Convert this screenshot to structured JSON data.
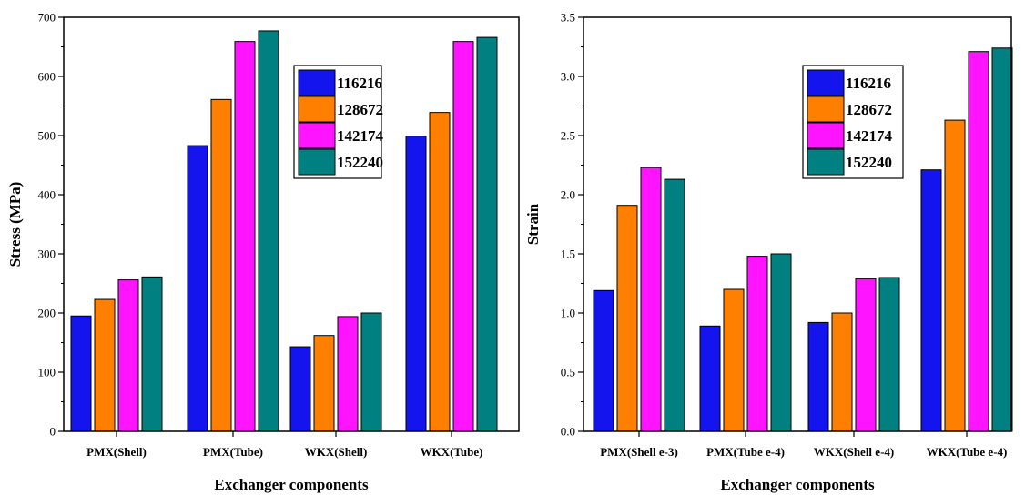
{
  "chart_data": [
    {
      "type": "bar",
      "xlabel": "Exchanger components",
      "ylabel": "Stress (MPa)",
      "ylim": [
        0,
        700
      ],
      "yticks": [
        0,
        100,
        200,
        300,
        400,
        500,
        600,
        700
      ],
      "categories": [
        "PMX(Shell)",
        "PMX(Tube)",
        "WKX(Shell)",
        "WKX(Tube)"
      ],
      "legend_position": "top-right",
      "series": [
        {
          "name": "116216",
          "color": "#1414ee",
          "values": [
            195,
            483,
            143,
            499
          ]
        },
        {
          "name": "128672",
          "color": "#ff8000",
          "values": [
            223,
            561,
            162,
            539
          ]
        },
        {
          "name": "142174",
          "color": "#ff14ff",
          "values": [
            256,
            659,
            194,
            659
          ]
        },
        {
          "name": "152240",
          "color": "#008080",
          "values": [
            261,
            677,
            200,
            666
          ]
        }
      ]
    },
    {
      "type": "bar",
      "xlabel": "Exchanger components",
      "ylabel": "Strain",
      "ylim": [
        0,
        3.5
      ],
      "yticks": [
        "0.0",
        "0.5",
        "1.0",
        "1.5",
        "2.0",
        "2.5",
        "3.0",
        "3.5"
      ],
      "categories": [
        "PMX(Shell e-3)",
        "PMX(Tube e-4)",
        "WKX(Shell e-4)",
        "WKX(Tube e-4)"
      ],
      "legend_position": "top-right",
      "series": [
        {
          "name": "116216",
          "color": "#1414ee",
          "values": [
            1.19,
            0.89,
            0.92,
            2.21
          ]
        },
        {
          "name": "128672",
          "color": "#ff8000",
          "values": [
            1.91,
            1.2,
            1.0,
            2.63
          ]
        },
        {
          "name": "142174",
          "color": "#ff14ff",
          "values": [
            2.23,
            1.48,
            1.29,
            3.21
          ]
        },
        {
          "name": "152240",
          "color": "#008080",
          "values": [
            2.13,
            1.5,
            1.3,
            3.24
          ]
        }
      ]
    }
  ]
}
